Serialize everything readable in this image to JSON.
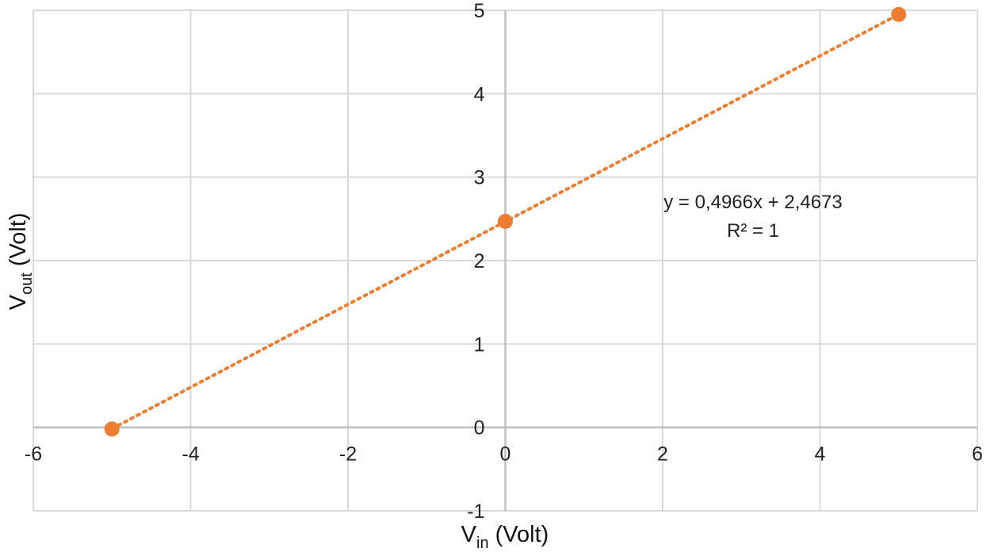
{
  "chart_data": {
    "type": "scatter",
    "xlim": [
      -6,
      6
    ],
    "ylim": [
      -1,
      5
    ],
    "x_ticks": [
      "-6",
      "-4",
      "-2",
      "0",
      "2",
      "4",
      "6"
    ],
    "y_ticks": [
      "-1",
      "0",
      "1",
      "2",
      "3",
      "4",
      "5"
    ],
    "grid": true,
    "xlabel": {
      "main": "V",
      "sub": "in",
      "rest": " (Volt)"
    },
    "ylabel": {
      "main": "V",
      "sub": "out",
      "rest": " (Volt)"
    },
    "series": [
      {
        "x": [
          -5,
          0,
          5
        ],
        "y": [
          -0.02,
          2.47,
          4.95
        ],
        "color": "#ED7D31"
      }
    ],
    "trendline": {
      "type": "linear",
      "style": "dotted",
      "color": "#ED7D31",
      "slope": 0.4966,
      "intercept": 2.4673,
      "equation": "y = 0,4966x + 2,4673",
      "r_squared": "R² = 1"
    }
  },
  "colors": {
    "grid": "#D9D9D9",
    "axis": "#BFBFBF",
    "marker": "#ED7D31"
  }
}
